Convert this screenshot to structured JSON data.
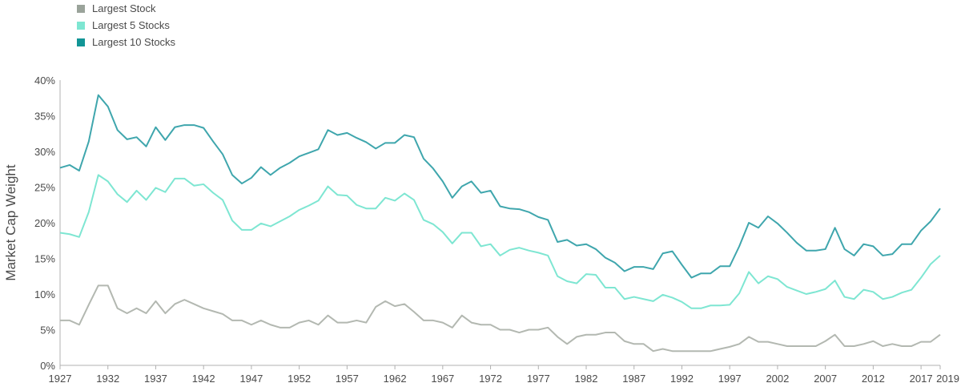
{
  "chart_data": {
    "type": "line",
    "ylabel": "Market Cap Weight",
    "xlabel": "",
    "title": "",
    "ylim": [
      0,
      40
    ],
    "xlim": [
      1927,
      2019
    ],
    "legend_position": "top-left",
    "grid": false,
    "x_ticks": [
      "1927",
      "1932",
      "1937",
      "1942",
      "1947",
      "1952",
      "1957",
      "1962",
      "1967",
      "1972",
      "1977",
      "1982",
      "1987",
      "1992",
      "1997",
      "2002",
      "2007",
      "2012",
      "2017",
      "2019"
    ],
    "y_ticks": [
      "0%",
      "5%",
      "10%",
      "15%",
      "20%",
      "25%",
      "30%",
      "35%",
      "40%"
    ],
    "x": [
      1927,
      1928,
      1929,
      1930,
      1931,
      1932,
      1933,
      1934,
      1935,
      1936,
      1937,
      1938,
      1939,
      1940,
      1941,
      1942,
      1943,
      1944,
      1945,
      1946,
      1947,
      1948,
      1949,
      1950,
      1951,
      1952,
      1953,
      1954,
      1955,
      1956,
      1957,
      1958,
      1959,
      1960,
      1961,
      1962,
      1963,
      1964,
      1965,
      1966,
      1967,
      1968,
      1969,
      1970,
      1971,
      1972,
      1973,
      1974,
      1975,
      1976,
      1977,
      1978,
      1979,
      1980,
      1981,
      1982,
      1983,
      1984,
      1985,
      1986,
      1987,
      1988,
      1989,
      1990,
      1991,
      1992,
      1993,
      1994,
      1995,
      1996,
      1997,
      1998,
      1999,
      2000,
      2001,
      2002,
      2003,
      2004,
      2005,
      2006,
      2007,
      2008,
      2009,
      2010,
      2011,
      2012,
      2013,
      2014,
      2015,
      2016,
      2017,
      2018,
      2019
    ],
    "series": [
      {
        "name": "Largest Stock",
        "color": "#b3b8b1",
        "values": [
          6.3,
          6.3,
          5.7,
          8.5,
          11.2,
          11.2,
          8.0,
          7.3,
          8.0,
          7.3,
          9.0,
          7.3,
          8.6,
          9.2,
          8.6,
          8.0,
          7.6,
          7.2,
          6.3,
          6.3,
          5.7,
          6.3,
          5.7,
          5.3,
          5.3,
          6.0,
          6.3,
          5.7,
          7.0,
          6.0,
          6.0,
          6.3,
          6.0,
          8.2,
          9.0,
          8.3,
          8.6,
          7.5,
          6.3,
          6.3,
          6.0,
          5.3,
          7.0,
          6.0,
          5.7,
          5.7,
          5.0,
          5.0,
          4.6,
          5.0,
          5.0,
          5.3,
          4.0,
          3.0,
          4.0,
          4.3,
          4.3,
          4.6,
          4.6,
          3.4,
          3.0,
          3.0,
          2.0,
          2.3,
          2.0,
          2.0,
          2.0,
          2.0,
          2.0,
          2.3,
          2.6,
          3.0,
          4.0,
          3.3,
          3.3,
          3.0,
          2.7,
          2.7,
          2.7,
          2.7,
          3.4,
          4.3,
          2.7,
          2.7,
          3.0,
          3.4,
          2.7,
          3.0,
          2.7,
          2.7,
          3.3,
          3.3,
          4.3
        ]
      },
      {
        "name": "Largest 5 Stocks",
        "color": "#7ee6d2",
        "values": [
          18.6,
          18.4,
          18.0,
          21.5,
          26.7,
          25.8,
          24.0,
          22.9,
          24.5,
          23.2,
          24.9,
          24.3,
          26.2,
          26.2,
          25.2,
          25.4,
          24.2,
          23.2,
          20.3,
          19.0,
          19.0,
          19.9,
          19.5,
          20.2,
          20.9,
          21.8,
          22.4,
          23.1,
          25.1,
          23.9,
          23.8,
          22.5,
          22.0,
          22.0,
          23.5,
          23.1,
          24.1,
          23.2,
          20.4,
          19.8,
          18.7,
          17.1,
          18.6,
          18.6,
          16.7,
          17.0,
          15.4,
          16.2,
          16.5,
          16.1,
          15.8,
          15.4,
          12.5,
          11.8,
          11.5,
          12.8,
          12.7,
          10.9,
          10.9,
          9.3,
          9.6,
          9.3,
          9.0,
          9.9,
          9.5,
          8.9,
          8.0,
          8.0,
          8.4,
          8.4,
          8.5,
          10.1,
          13.1,
          11.5,
          12.5,
          12.1,
          11.0,
          10.5,
          10.0,
          10.3,
          10.7,
          11.9,
          9.6,
          9.3,
          10.6,
          10.3,
          9.3,
          9.6,
          10.2,
          10.6,
          12.3,
          14.2,
          15.4
        ]
      },
      {
        "name": "Largest 10 Stocks",
        "color": "#3fa6ad",
        "values": [
          27.7,
          28.1,
          27.3,
          31.4,
          37.9,
          36.3,
          33.0,
          31.7,
          32.0,
          30.7,
          33.4,
          31.6,
          33.4,
          33.7,
          33.7,
          33.3,
          31.4,
          29.6,
          26.7,
          25.5,
          26.3,
          27.8,
          26.7,
          27.7,
          28.4,
          29.3,
          29.8,
          30.3,
          33.0,
          32.3,
          32.6,
          31.9,
          31.3,
          30.4,
          31.2,
          31.2,
          32.3,
          32.0,
          29.0,
          27.6,
          25.8,
          23.5,
          25.1,
          25.8,
          24.2,
          24.5,
          22.3,
          22.0,
          21.9,
          21.5,
          20.8,
          20.4,
          17.3,
          17.6,
          16.8,
          17.0,
          16.3,
          15.1,
          14.4,
          13.2,
          13.8,
          13.8,
          13.5,
          15.7,
          16.0,
          14.1,
          12.3,
          12.9,
          12.9,
          13.9,
          13.9,
          16.7,
          20.0,
          19.3,
          20.9,
          19.9,
          18.6,
          17.2,
          16.1,
          16.1,
          16.3,
          19.3,
          16.3,
          15.4,
          17.0,
          16.7,
          15.4,
          15.6,
          17.0,
          17.0,
          18.9,
          20.2,
          22.0
        ]
      }
    ]
  }
}
